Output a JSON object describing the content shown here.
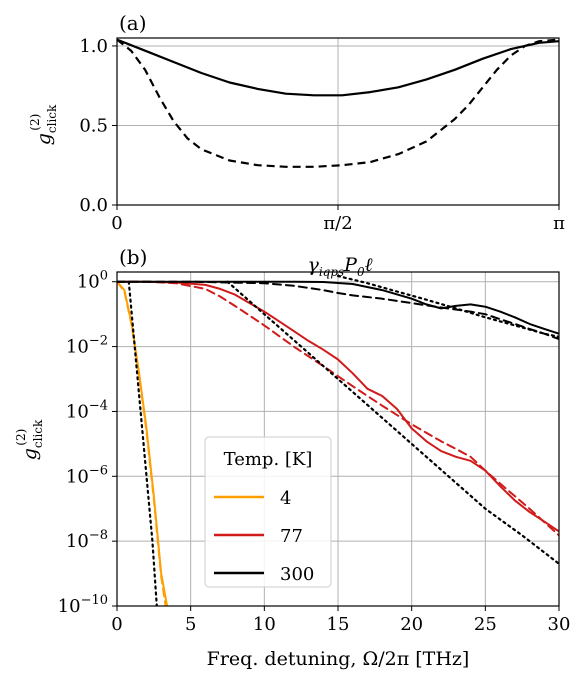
{
  "chart_data": [
    {
      "panel": "(a)",
      "type": "line",
      "xlabel": "γ_iqps P_0 ℓ",
      "ylabel": "g_click^(2)",
      "xlim": [
        0,
        3.14159
      ],
      "ylim": [
        0,
        1.05
      ],
      "scale": "linear",
      "grid": true,
      "x_ticks": [
        {
          "value": 0,
          "label": "0"
        },
        {
          "value": 1.5708,
          "label": "π/2"
        },
        {
          "value": 3.14159,
          "label": "π"
        }
      ],
      "y_ticks": [
        {
          "value": 0,
          "label": "0.0"
        },
        {
          "value": 0.5,
          "label": "0.5"
        },
        {
          "value": 1.0,
          "label": "1.0"
        }
      ],
      "series": [
        {
          "style": "solid",
          "color": "#000000",
          "x": [
            0,
            0.2,
            0.4,
            0.6,
            0.8,
            1.0,
            1.2,
            1.4,
            1.6,
            1.8,
            2.0,
            2.2,
            2.4,
            2.6,
            2.8,
            3.0,
            3.14159
          ],
          "y": [
            1.04,
            0.97,
            0.9,
            0.83,
            0.77,
            0.73,
            0.7,
            0.69,
            0.69,
            0.71,
            0.74,
            0.79,
            0.85,
            0.92,
            0.98,
            1.02,
            1.03
          ]
        },
        {
          "style": "dashed",
          "color": "#000000",
          "x": [
            0,
            0.1,
            0.2,
            0.3,
            0.4,
            0.5,
            0.6,
            0.8,
            1.0,
            1.2,
            1.4,
            1.6,
            1.8,
            2.0,
            2.2,
            2.4,
            2.5,
            2.6,
            2.7,
            2.8,
            2.9,
            3.0,
            3.14159
          ],
          "y": [
            1.04,
            0.97,
            0.85,
            0.68,
            0.53,
            0.42,
            0.35,
            0.28,
            0.25,
            0.24,
            0.24,
            0.25,
            0.27,
            0.32,
            0.4,
            0.54,
            0.63,
            0.74,
            0.85,
            0.94,
            1.0,
            1.03,
            1.04
          ]
        }
      ]
    },
    {
      "panel": "(b)",
      "type": "line",
      "xlabel": "Freq. detuning, Ω/2π [THz]",
      "ylabel": "g_click^(2)",
      "xlim": [
        0,
        30
      ],
      "ylim_log10": [
        -10,
        0.3
      ],
      "scale": "log",
      "grid": true,
      "x_ticks": [
        0,
        5,
        10,
        15,
        20,
        25,
        30
      ],
      "y_ticks": [
        {
          "exp": 0,
          "label": "10^0"
        },
        {
          "exp": -2,
          "label": "10^-2"
        },
        {
          "exp": -4,
          "label": "10^-4"
        },
        {
          "exp": -6,
          "label": "10^-6"
        },
        {
          "exp": -8,
          "label": "10^-8"
        },
        {
          "exp": -10,
          "label": "10^-10"
        }
      ],
      "legend": {
        "title": "Temp. [K]",
        "placement": "lower-left",
        "entries": [
          {
            "label": "4",
            "color": "#ff9f00"
          },
          {
            "label": "77",
            "color": "#d11a1a"
          },
          {
            "label": "300",
            "color": "#000000"
          }
        ]
      },
      "series": [
        {
          "name": "4",
          "style": "solid",
          "color": "#ff9f00",
          "x": [
            0,
            0.5,
            1.0,
            1.5,
            2.0,
            2.5,
            3.0,
            3.4
          ],
          "y": [
            1.0,
            0.55,
            0.05,
            0.0015,
            3e-05,
            2.5e-07,
            1e-09,
            1e-10
          ]
        },
        {
          "name": "4",
          "style": "dashed",
          "color": "#ff9f00",
          "x": [
            0,
            0.5,
            1.0,
            1.5,
            2.0,
            2.5,
            3.0,
            3.3
          ],
          "y": [
            1.0,
            0.5,
            0.045,
            0.0013,
            2.5e-05,
            2e-07,
            8e-10,
            1e-10
          ]
        },
        {
          "name": "77",
          "style": "solid",
          "color": "#d11a1a",
          "x": [
            0,
            2,
            4,
            6,
            7,
            8,
            9,
            10,
            11,
            12,
            13,
            14,
            15,
            16,
            17,
            18,
            19,
            20,
            21,
            22,
            23,
            24,
            25,
            26,
            27,
            28,
            29,
            30
          ],
          "y": [
            1.0,
            1.0,
            0.95,
            0.8,
            0.6,
            0.4,
            0.22,
            0.12,
            0.06,
            0.03,
            0.015,
            0.008,
            0.004,
            0.0015,
            0.0005,
            0.0003,
            0.00012,
            3e-05,
            1.2e-05,
            6e-06,
            4e-06,
            3e-06,
            1.5e-06,
            5e-07,
            1.8e-07,
            8e-08,
            4e-08,
            2e-08
          ]
        },
        {
          "name": "77",
          "style": "dashed",
          "color": "#d11a1a",
          "x": [
            0,
            2,
            4,
            6,
            7,
            8,
            9,
            10,
            12,
            14,
            16,
            18,
            20,
            22,
            23,
            24,
            25,
            26,
            28,
            30
          ],
          "y": [
            1.0,
            1.0,
            0.9,
            0.6,
            0.35,
            0.18,
            0.09,
            0.045,
            0.01,
            0.0025,
            0.0006,
            0.00015,
            4e-05,
            1.2e-05,
            7e-06,
            4e-06,
            1.5e-06,
            6e-07,
            1e-07,
            1.5e-08
          ]
        },
        {
          "name": "300",
          "style": "solid",
          "color": "#000000",
          "x": [
            0,
            5,
            10,
            12,
            14,
            16,
            18,
            20,
            21,
            22,
            23,
            24,
            25,
            26,
            27,
            28,
            29,
            30
          ],
          "y": [
            1.0,
            1.0,
            1.0,
            1.0,
            0.98,
            0.85,
            0.55,
            0.3,
            0.2,
            0.15,
            0.18,
            0.2,
            0.17,
            0.12,
            0.08,
            0.05,
            0.035,
            0.025
          ]
        },
        {
          "name": "300",
          "style": "dashed",
          "color": "#000000",
          "x": [
            0,
            5,
            10,
            12,
            14,
            15,
            16,
            18,
            20,
            22,
            24,
            25,
            26,
            27,
            28,
            29,
            30
          ],
          "y": [
            1.0,
            1.0,
            0.9,
            0.75,
            0.55,
            0.45,
            0.38,
            0.3,
            0.22,
            0.16,
            0.12,
            0.1,
            0.07,
            0.05,
            0.035,
            0.025,
            0.017
          ]
        },
        {
          "style": "dotted",
          "color": "#000000",
          "x": [
            0.8,
            1.2,
            1.6,
            2.0,
            2.4,
            2.7
          ],
          "y": [
            1.0,
            0.01,
            0.0001,
            1e-06,
            1e-08,
            1e-10
          ]
        },
        {
          "style": "dotted",
          "color": "#000000",
          "x": [
            7.5,
            10,
            12.5,
            15,
            17.5,
            20,
            22.5,
            25,
            27.5,
            30
          ],
          "y": [
            1.0,
            0.1,
            0.01,
            0.001,
            0.0001,
            1e-05,
            1e-06,
            1e-07,
            1.5e-08,
            2e-09
          ]
        },
        {
          "style": "dotted",
          "color": "#000000",
          "x": [
            15,
            17,
            19,
            21,
            23,
            25,
            27,
            29,
            30
          ],
          "y": [
            1.5,
            0.9,
            0.5,
            0.28,
            0.15,
            0.08,
            0.045,
            0.025,
            0.02
          ]
        }
      ]
    }
  ]
}
